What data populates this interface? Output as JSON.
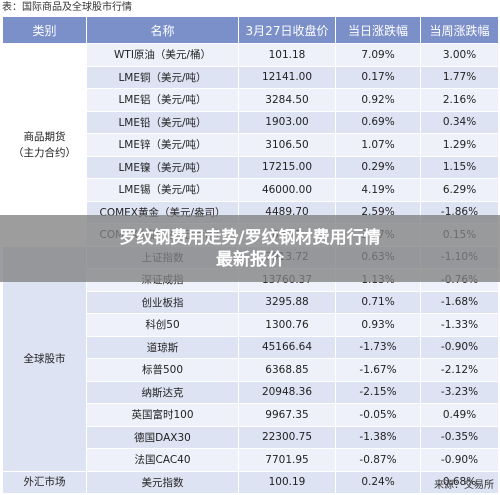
{
  "caption": "表：国际商品及全球股市行情",
  "headers": {
    "category": "类别",
    "name": "名称",
    "close": "3月27日收盘价",
    "day_change": "当日涨跌幅",
    "week_change": "当周涨跌幅"
  },
  "groups": [
    {
      "category": "商品期货\n（主力合约）",
      "rows": [
        {
          "name": "WTI原油（美元/桶）",
          "close": "101.18",
          "day": "7.09%",
          "week": "3.00%",
          "day_dir": "pos",
          "week_dir": "pos"
        },
        {
          "name": "LME铜（美元/吨）",
          "close": "12141.00",
          "day": "0.17%",
          "week": "1.77%",
          "day_dir": "pos",
          "week_dir": "pos"
        },
        {
          "name": "LME铝（美元/吨）",
          "close": "3284.50",
          "day": "0.92%",
          "week": "2.16%",
          "day_dir": "pos",
          "week_dir": "pos"
        },
        {
          "name": "LME铅（美元/吨）",
          "close": "1903.00",
          "day": "0.69%",
          "week": "0.34%",
          "day_dir": "pos",
          "week_dir": "pos"
        },
        {
          "name": "LME锌（美元/吨）",
          "close": "3106.50",
          "day": "1.07%",
          "week": "1.29%",
          "day_dir": "pos",
          "week_dir": "pos"
        },
        {
          "name": "LME镍（美元/吨）",
          "close": "17215.00",
          "day": "0.29%",
          "week": "1.15%",
          "day_dir": "pos",
          "week_dir": "pos"
        },
        {
          "name": "LME锡（美元/吨）",
          "close": "46000.00",
          "day": "4.19%",
          "week": "6.29%",
          "day_dir": "pos",
          "week_dir": "pos"
        },
        {
          "name": "COMEX黄金（美元/盎司）",
          "close": "4489.70",
          "day": "2.59%",
          "week": "-1.86%",
          "day_dir": "pos",
          "week_dir": "neg"
        },
        {
          "name": "COMEX白银（美元/盎司）",
          "close": "69.77",
          "day": "3.77%",
          "week": "0.15%",
          "day_dir": "pos",
          "week_dir": "pos"
        }
      ]
    },
    {
      "category": "全球股市",
      "rows": [
        {
          "name": "上证指数",
          "close": "3913.72",
          "day": "0.63%",
          "week": "-1.10%",
          "day_dir": "pos",
          "week_dir": "neg"
        },
        {
          "name": "深证成指",
          "close": "13760.37",
          "day": "1.13%",
          "week": "-0.76%",
          "day_dir": "pos",
          "week_dir": "neg"
        },
        {
          "name": "创业板指",
          "close": "3295.88",
          "day": "0.71%",
          "week": "-1.68%",
          "day_dir": "pos",
          "week_dir": "neg"
        },
        {
          "name": "科创50",
          "close": "1300.76",
          "day": "0.93%",
          "week": "-1.33%",
          "day_dir": "pos",
          "week_dir": "neg"
        },
        {
          "name": "道琼斯",
          "close": "45166.64",
          "day": "-1.73%",
          "week": "-0.90%",
          "day_dir": "neg",
          "week_dir": "neg"
        },
        {
          "name": "标普500",
          "close": "6368.85",
          "day": "-1.67%",
          "week": "-2.12%",
          "day_dir": "neg",
          "week_dir": "neg"
        },
        {
          "name": "纳斯达克",
          "close": "20948.36",
          "day": "-2.15%",
          "week": "-3.23%",
          "day_dir": "neg",
          "week_dir": "neg"
        },
        {
          "name": "英国富时100",
          "close": "9967.35",
          "day": "-0.05%",
          "week": "0.49%",
          "day_dir": "neg",
          "week_dir": "pos"
        },
        {
          "name": "德国DAX30",
          "close": "22300.75",
          "day": "-1.38%",
          "week": "-0.35%",
          "day_dir": "neg",
          "week_dir": "neg"
        },
        {
          "name": "法国CAC40",
          "close": "7701.95",
          "day": "-0.87%",
          "week": "-0.90%",
          "day_dir": "neg",
          "week_dir": "neg"
        }
      ]
    },
    {
      "category": "外汇市场",
      "rows": [
        {
          "name": "美元指数",
          "close": "100.19",
          "day": "0.24%",
          "week": "0.68%",
          "day_dir": "pos",
          "week_dir": "pos"
        }
      ]
    }
  ],
  "source": "来源：交易所",
  "overlay": {
    "line1": "罗纹钢费用走势/罗纹钢材费用行情",
    "line2": "最新报价"
  },
  "colors": {
    "header_bg": "#7b8fc9",
    "row_light": "#eef1fa",
    "row_dark": "#dde3f3",
    "positive": "#e0201b",
    "negative": "#1f8f3b"
  }
}
